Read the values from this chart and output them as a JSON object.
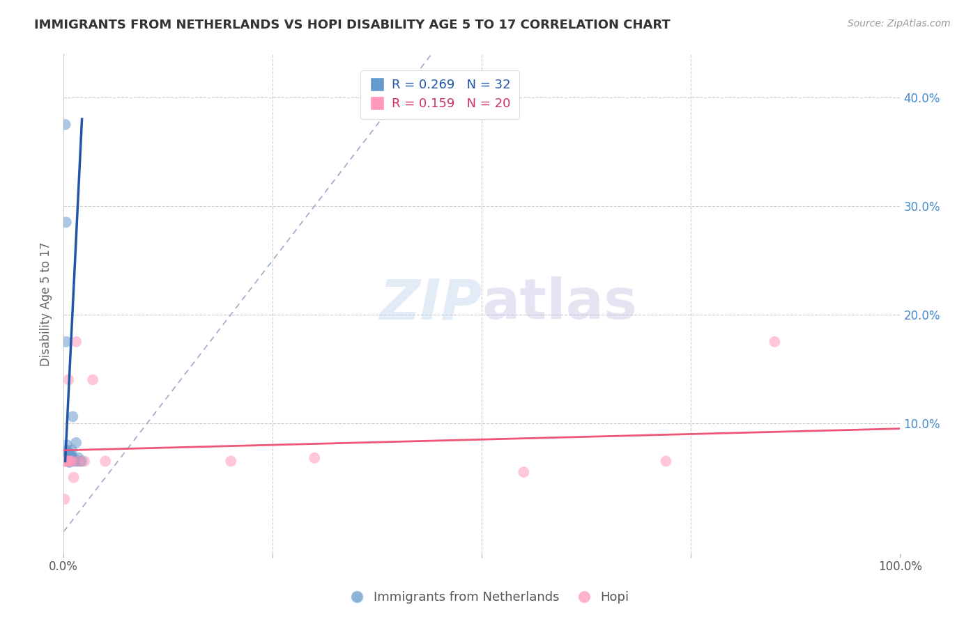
{
  "title": "IMMIGRANTS FROM NETHERLANDS VS HOPI DISABILITY AGE 5 TO 17 CORRELATION CHART",
  "source": "Source: ZipAtlas.com",
  "xlabel": "",
  "ylabel": "Disability Age 5 to 17",
  "xlim": [
    0,
    1.0
  ],
  "ylim": [
    -0.02,
    0.44
  ],
  "x_ticks": [
    0.0,
    0.25,
    0.5,
    0.75,
    1.0
  ],
  "x_tick_labels": [
    "0.0%",
    "",
    "",
    "",
    "100.0%"
  ],
  "y_ticks_right": [
    0.0,
    0.1,
    0.2,
    0.3,
    0.4
  ],
  "y_tick_labels_right": [
    "",
    "10.0%",
    "20.0%",
    "30.0%",
    "40.0%"
  ],
  "legend_blue_label": "Immigrants from Netherlands",
  "legend_pink_label": "Hopi",
  "R_blue": 0.269,
  "N_blue": 32,
  "R_pink": 0.159,
  "N_pink": 20,
  "blue_color": "#6699cc",
  "pink_color": "#ff99bb",
  "blue_line_color": "#2255aa",
  "pink_line_color": "#ee5577",
  "watermark_zip": "ZIP",
  "watermark_atlas": "atlas",
  "blue_scatter_x": [
    0.002,
    0.003,
    0.003,
    0.004,
    0.004,
    0.004,
    0.005,
    0.005,
    0.005,
    0.005,
    0.006,
    0.006,
    0.006,
    0.006,
    0.007,
    0.007,
    0.007,
    0.008,
    0.008,
    0.009,
    0.009,
    0.009,
    0.01,
    0.01,
    0.011,
    0.012,
    0.013,
    0.015,
    0.016,
    0.018,
    0.02,
    0.022
  ],
  "blue_scatter_y": [
    0.375,
    0.285,
    0.175,
    0.065,
    0.075,
    0.08,
    0.068,
    0.072,
    0.068,
    0.065,
    0.068,
    0.072,
    0.065,
    0.065,
    0.068,
    0.068,
    0.064,
    0.068,
    0.072,
    0.07,
    0.065,
    0.068,
    0.075,
    0.068,
    0.106,
    0.068,
    0.065,
    0.082,
    0.065,
    0.068,
    0.065,
    0.065
  ],
  "pink_scatter_x": [
    0.001,
    0.002,
    0.003,
    0.004,
    0.005,
    0.006,
    0.007,
    0.008,
    0.01,
    0.012,
    0.015,
    0.018,
    0.025,
    0.035,
    0.05,
    0.2,
    0.3,
    0.55,
    0.72,
    0.85
  ],
  "pink_scatter_y": [
    0.03,
    0.065,
    0.065,
    0.065,
    0.065,
    0.14,
    0.065,
    0.065,
    0.065,
    0.05,
    0.175,
    0.065,
    0.065,
    0.14,
    0.065,
    0.065,
    0.068,
    0.055,
    0.065,
    0.175
  ],
  "blue_trendline_x": [
    0.002,
    0.022
  ],
  "blue_trendline_y": [
    0.065,
    0.38
  ],
  "pink_trendline_x": [
    0.0,
    1.0
  ],
  "pink_trendline_y": [
    0.075,
    0.095
  ],
  "diag_line_x": [
    0.0,
    0.44
  ],
  "diag_line_y": [
    0.0,
    0.44
  ],
  "background_color": "#ffffff",
  "plot_bg_color": "#ffffff"
}
